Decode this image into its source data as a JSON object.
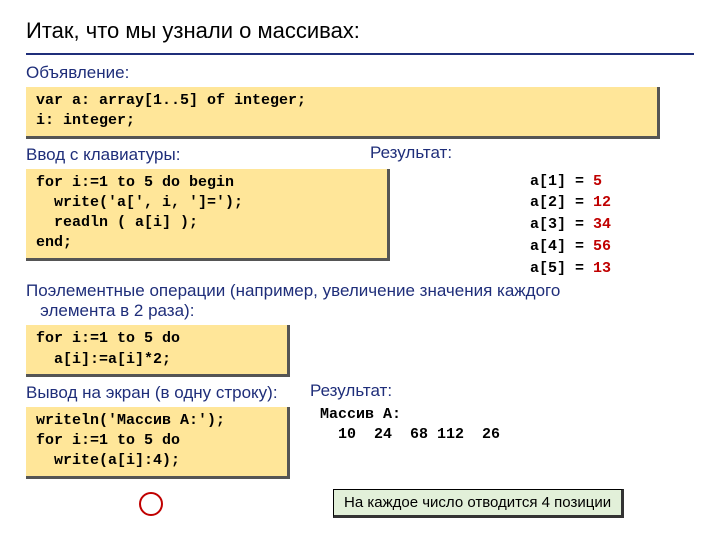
{
  "title": "Итак, что мы узнали о массивах:",
  "sections": {
    "declare_label": "Объявление:",
    "input_label": "Ввод с клавиатуры:",
    "elementwise_label": "Поэлементные операции (например, увеличение значения каждого\n   элемента в 2 раза):",
    "output_label": "Вывод на экран (в одну строку):",
    "result_label": "Результат:"
  },
  "code": {
    "declare": "var a: array[1..5] of integer;\ni: integer;",
    "input": "for i:=1 to 5 do begin\n  write('a[', i, ']=');\n  readln ( a[i] );\nend;",
    "elementwise": "for i:=1 to 5 do\n  a[i]:=a[i]*2;",
    "output": "writeln('Массив A:');\nfor i:=1 to 5 do\n  write(a[i]:4);"
  },
  "results": {
    "entries": [
      {
        "key": "a[1] =",
        "val": "5"
      },
      {
        "key": "a[2] =",
        "val": "12"
      },
      {
        "key": "a[3] =",
        "val": "34"
      },
      {
        "key": "a[4] =",
        "val": "56"
      },
      {
        "key": "a[5] =",
        "val": "13"
      }
    ],
    "output_title": "Массив A:",
    "output_values": "  10  24  68 112  26"
  },
  "callout": "На каждое число отводится 4 позиции",
  "colors": {
    "accent": "#1f2e7a",
    "code_bg": "#ffe699",
    "value": "#c00000",
    "callout_bg": "#e2f0d9"
  }
}
